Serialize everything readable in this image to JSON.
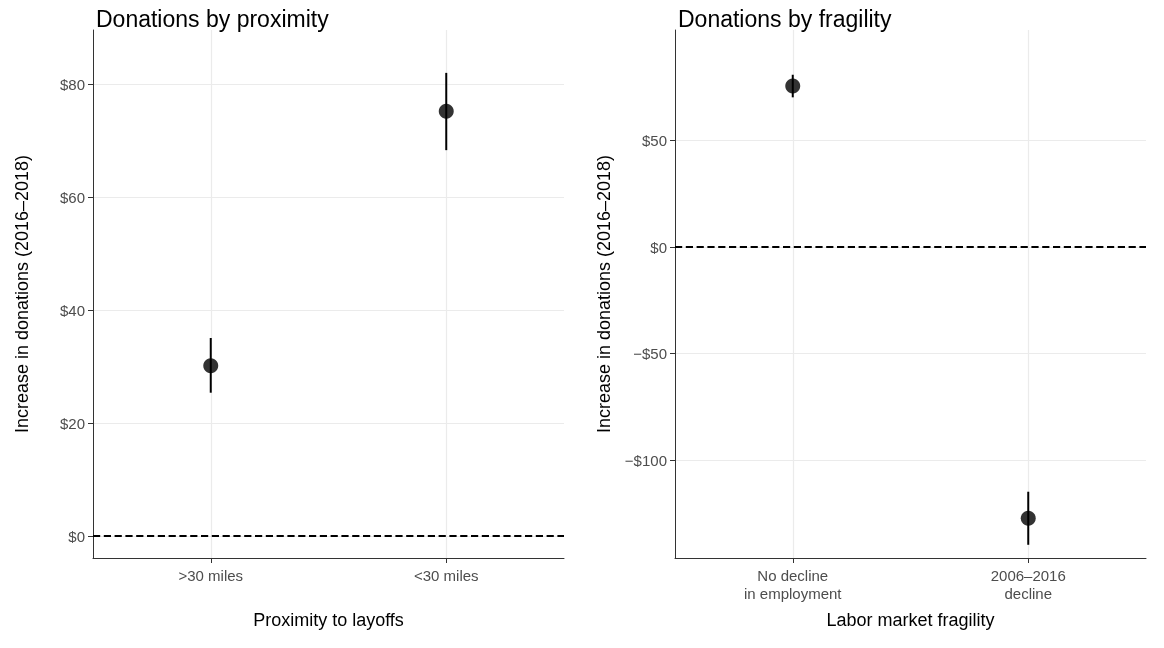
{
  "chart_data": [
    {
      "type": "scatter",
      "title": "Donations by proximity",
      "xlabel": "Proximity to layoffs",
      "ylabel": "Increase in donations (2016–2018)",
      "categories": [
        ">30 miles",
        "<30 miles"
      ],
      "series": [
        {
          "color": "#000000",
          "values": [
            30.2,
            75.3
          ],
          "errors": [
            [
              25.4,
              35.1
            ],
            [
              68.4,
              82.1
            ]
          ]
        }
      ],
      "ylim": [
        -3.9,
        89.7
      ],
      "yticks": [
        {
          "value": 0,
          "label": "$0"
        },
        {
          "value": 20,
          "label": "$20"
        },
        {
          "value": 40,
          "label": "$40"
        },
        {
          "value": 60,
          "label": "$60"
        },
        {
          "value": 80,
          "label": "$80"
        }
      ],
      "ref_lines": [
        {
          "axis": "y",
          "value": 0,
          "line_style": "dashed",
          "color": "#000000"
        }
      ],
      "grid": true,
      "marker": "circle"
    },
    {
      "type": "scatter",
      "title": "Donations by fragility",
      "xlabel": "Labor market fragility",
      "ylabel": "Increase in donations (2016–2018)",
      "categories": [
        "No decline\nin employment",
        "2006–2016\ndecline"
      ],
      "series": [
        {
          "color": "#000000",
          "values": [
            75.6,
            -127.3
          ],
          "errors": [
            [
              70.3,
              80.9
            ],
            [
              -139.7,
              -114.8
            ]
          ]
        }
      ],
      "ylim": [
        -145.9,
        101.9
      ],
      "yticks": [
        {
          "value": -100,
          "label": "−$100"
        },
        {
          "value": -50,
          "label": "−$50"
        },
        {
          "value": 0,
          "label": "$0"
        },
        {
          "value": 50,
          "label": "$50"
        }
      ],
      "ref_lines": [
        {
          "axis": "y",
          "value": 0,
          "line_style": "dashed",
          "color": "#000000"
        }
      ],
      "grid": true,
      "marker": "circle"
    }
  ]
}
